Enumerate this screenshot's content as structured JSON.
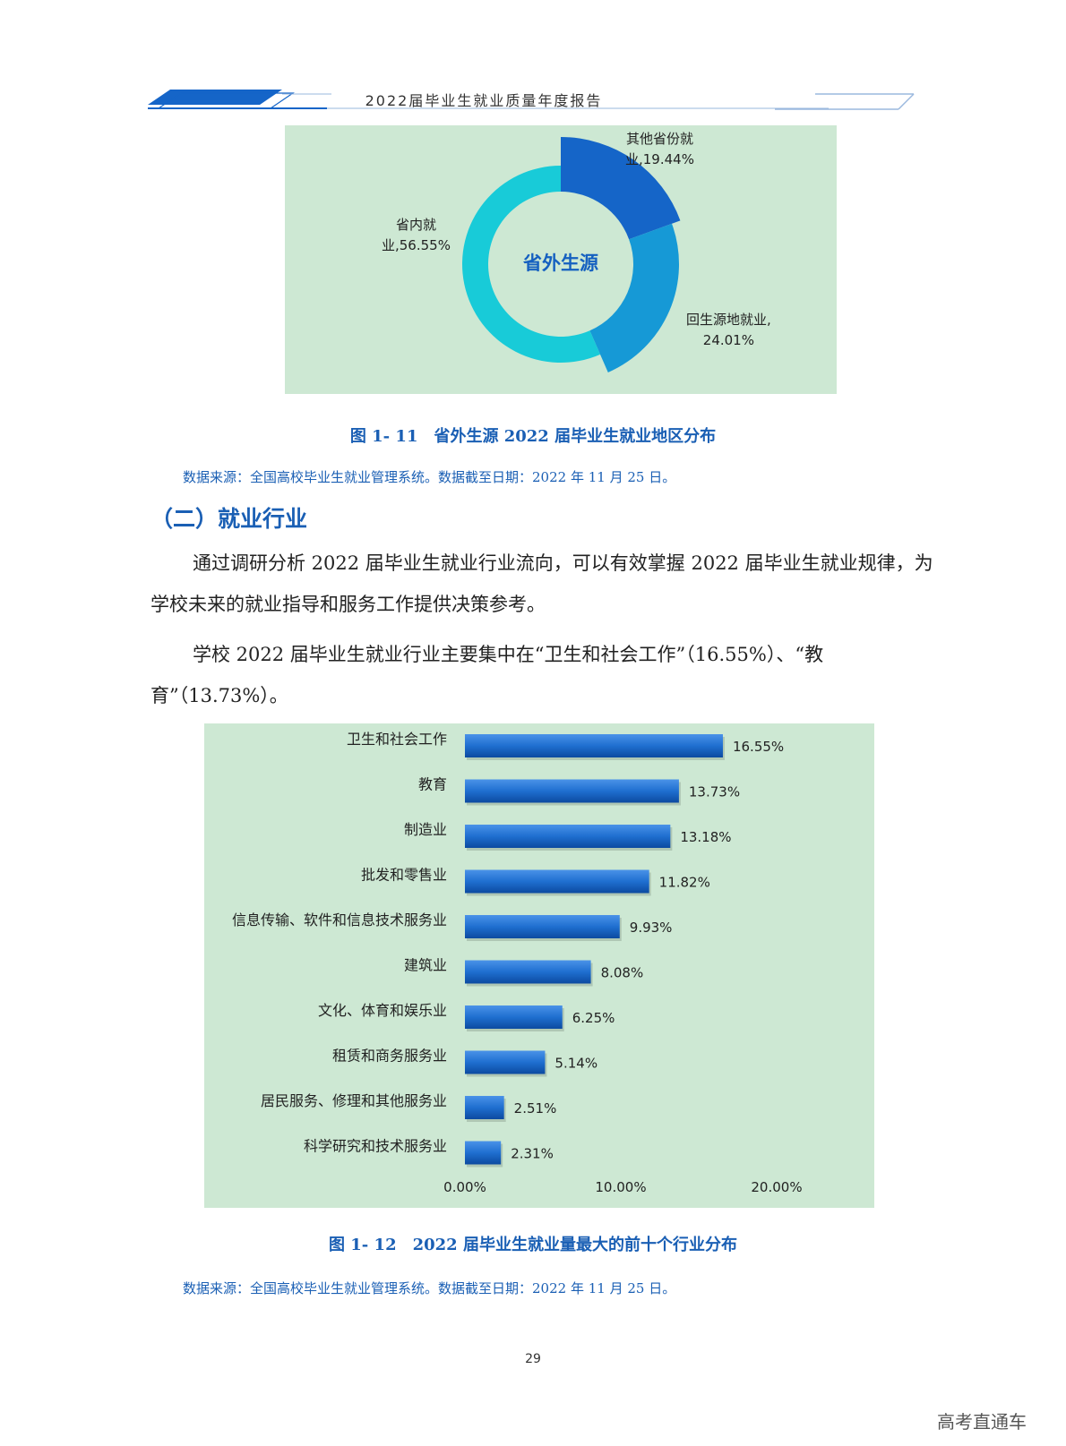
{
  "header": {
    "title": "2022届毕业生就业质量年度报告",
    "accent_color": "#1a5fb4"
  },
  "donut_chart": {
    "center_label": "省外生源",
    "colors": {
      "background": "#cde8d3",
      "其他省份就业": "#1565c8",
      "回生源地就业": "#1699d6",
      "省内就业": "#18cbd8",
      "center_text": "#1560c0"
    },
    "chart_data": {
      "type": "pie",
      "title": "",
      "categories": [
        "其他省份就业",
        "回生源地就业",
        "省内就业"
      ],
      "values": [
        19.44,
        24.01,
        56.55
      ],
      "labels": [
        [
          "其他省份就",
          "业,19.44%"
        ],
        [
          "回生源地就业,",
          "24.01%"
        ],
        [
          "省内就",
          "业,56.55%"
        ]
      ]
    }
  },
  "figure1": {
    "caption": "图 1- 11　省外生源 2022 届毕业生就业地区分布",
    "source": "数据来源：全国高校毕业生就业管理系统。数据截至日期：2022 年 11 月 25 日。"
  },
  "section": {
    "heading": "（二）就业行业",
    "para1": "通过调研分析 2022 届毕业生就业行业流向，可以有效掌握 2022 届毕业生就业规律，为学校未来的就业指导和服务工作提供决策参考。",
    "para2": "学校 2022 届毕业生就业行业主要集中在“卫生和社会工作”（16.55%）、“教育”（13.73%）。"
  },
  "bar_chart": {
    "colors": {
      "background": "#cde8d3",
      "bar": "#1f6fd0",
      "bar_dark": "#0c4aa0"
    },
    "chart_data": {
      "type": "bar",
      "orientation": "horizontal",
      "title": "",
      "xlabel": "",
      "ylabel": "",
      "categories": [
        "卫生和社会工作",
        "教育",
        "制造业",
        "批发和零售业",
        "信息传输、软件和信息技术服务业",
        "建筑业",
        "文化、体育和娱乐业",
        "租赁和商务服务业",
        "居民服务、修理和其他服务业",
        "科学研究和技术服务业"
      ],
      "values": [
        16.55,
        13.73,
        13.18,
        11.82,
        9.93,
        8.08,
        6.25,
        5.14,
        2.51,
        2.31
      ],
      "value_labels": [
        "16.55%",
        "13.73%",
        "13.18%",
        "11.82%",
        "9.93%",
        "8.08%",
        "6.25%",
        "5.14%",
        "2.51%",
        "2.31%"
      ],
      "xlim": [
        0,
        25
      ],
      "xticks": [
        0,
        10,
        20
      ],
      "xtick_labels": [
        "0.00%",
        "10.00%",
        "20.00%"
      ],
      "grid": false,
      "legend": "none"
    }
  },
  "figure2": {
    "caption": "图 1- 12　2022 届毕业生就业量最大的前十个行业分布",
    "source": "数据来源：全国高校毕业生就业管理系统。数据截至日期：2022 年 11 月 25 日。"
  },
  "page_number": "29",
  "watermark": "高考直通车"
}
